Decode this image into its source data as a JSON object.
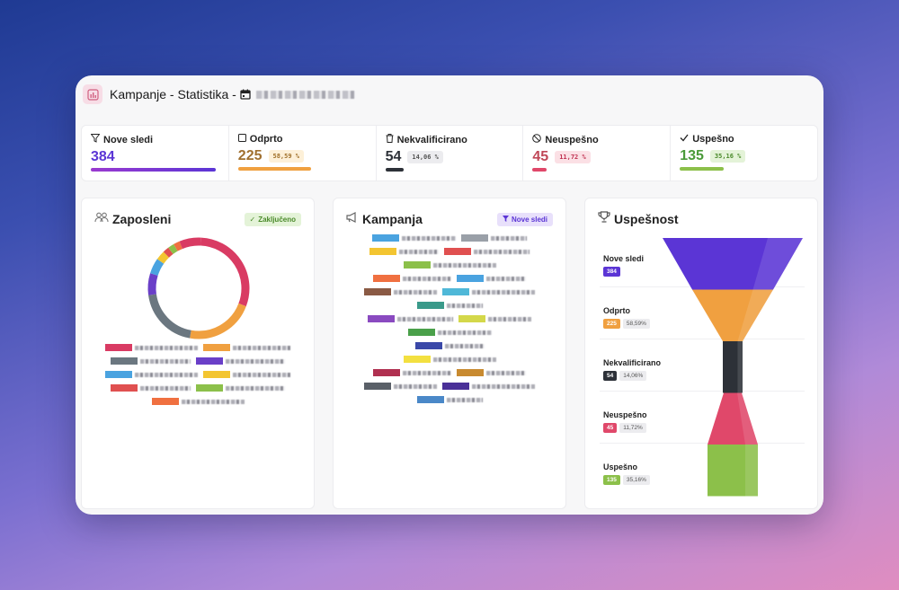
{
  "window": {
    "title": "Kampanje - Statistika -"
  },
  "stats": [
    {
      "label": "Nove sledi",
      "icon": "filter-icon",
      "value": "384",
      "pct": "",
      "color": "#5b35d5",
      "bar_fraction": 1.0
    },
    {
      "label": "Odprto",
      "icon": "square-icon",
      "value": "225",
      "pct": "58,59 %",
      "color": "#f0a040",
      "bar_fraction": 0.5859
    },
    {
      "label": "Nekvalificirano",
      "icon": "trash-icon",
      "value": "54",
      "pct": "14,06 %",
      "color": "#2d3138",
      "bar_fraction": 0.1406
    },
    {
      "label": "Neuspešno",
      "icon": "ban-icon",
      "value": "45",
      "pct": "11,72 %",
      "color": "#e0486a",
      "bar_fraction": 0.1172
    },
    {
      "label": "Uspešno",
      "icon": "check-icon",
      "value": "135",
      "pct": "35,16 %",
      "color": "#8cc04a",
      "bar_fraction": 0.3516
    }
  ],
  "cards": {
    "employees": {
      "title": "Zaposleni",
      "badge": "Zaključeno"
    },
    "campaign": {
      "title": "Kampanja",
      "badge": "Nove sledi"
    },
    "success": {
      "title": "Uspešnost"
    }
  },
  "donut": [
    {
      "color": "#d93b63",
      "fraction": 0.3
    },
    {
      "color": "#f0a040",
      "fraction": 0.22
    },
    {
      "color": "#6b7780",
      "fraction": 0.2
    },
    {
      "color": "#6a3fc8",
      "fraction": 0.07
    },
    {
      "color": "#4aa3e0",
      "fraction": 0.05
    },
    {
      "color": "#f3c531",
      "fraction": 0.03
    },
    {
      "color": "#e05050",
      "fraction": 0.02
    },
    {
      "color": "#8cc04a",
      "fraction": 0.02
    },
    {
      "color": "#f07040",
      "fraction": 0.02
    },
    {
      "color": "#d93b63",
      "fraction": 0.07
    }
  ],
  "employee_legend_colors": [
    [
      "#d93b63",
      "#f0a040"
    ],
    [
      "#6b7780",
      "#6a3fc8"
    ],
    [
      "#4aa3e0",
      "#f3c531"
    ],
    [
      "#e05050",
      "#8cc04a"
    ],
    [
      "#f07040"
    ]
  ],
  "campaign_legend_colors": [
    [
      "#4aa3e0",
      "#9aa0a8"
    ],
    [
      "#f3c531",
      "#e05050"
    ],
    [
      "#8cc04a"
    ],
    [
      "#f07040",
      "#4aa3e0"
    ],
    [
      "#8a5a44",
      "#4fb8d8"
    ],
    [
      "#3a9a8a"
    ],
    [
      "#8a4ac0",
      "#d4d84a"
    ],
    [
      "#4aa04a"
    ],
    [
      "#3a48a8"
    ],
    [
      "#f3e040"
    ],
    [
      "#b03050",
      "#c88a30"
    ],
    [
      "#5a6068",
      "#4a3098"
    ],
    [
      "#4a88c8"
    ]
  ],
  "funnel": [
    {
      "label": "Nove sledi",
      "value": "384",
      "pct": "",
      "color": "#5b35d5"
    },
    {
      "label": "Odprto",
      "value": "225",
      "pct": "58,59%",
      "color": "#f0a040"
    },
    {
      "label": "Nekvalificirano",
      "value": "54",
      "pct": "14,06%",
      "color": "#2d3138"
    },
    {
      "label": "Neuspešno",
      "value": "45",
      "pct": "11,72%",
      "color": "#e0486a"
    },
    {
      "label": "Uspešno",
      "value": "135",
      "pct": "35,16%",
      "color": "#8cc04a"
    }
  ]
}
